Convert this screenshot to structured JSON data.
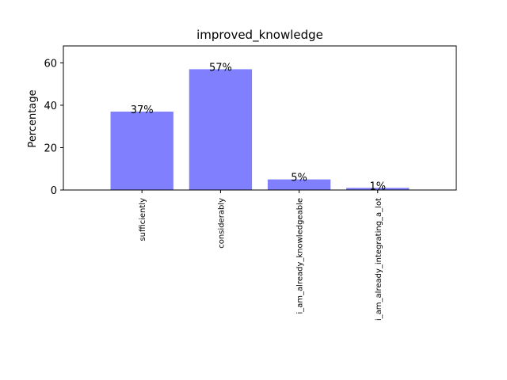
{
  "chart_data": {
    "type": "bar",
    "title": "improved_knowledge",
    "xlabel": "",
    "ylabel": "Percentage",
    "categories": [
      "sufficiently",
      "considerably",
      "i_am_already_knowledgeable",
      "i_am_already_integrating_a_lot"
    ],
    "values": [
      37,
      57,
      5,
      1
    ],
    "data_labels": [
      "37%",
      "57%",
      "5%",
      "1%"
    ],
    "ylim": [
      0,
      68
    ],
    "yticks": [
      0,
      20,
      40,
      60
    ],
    "bar_color": "#8080ff",
    "grid": false,
    "legend": "none"
  }
}
